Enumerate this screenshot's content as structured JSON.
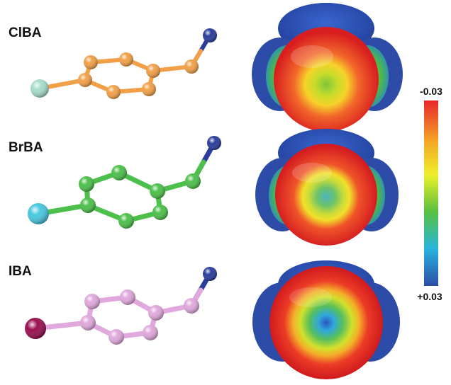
{
  "molecules": [
    {
      "label": "ClBA",
      "carbon_color": "#f2a048",
      "halogen_color": "#a8dccc",
      "oxygen_color": "#f2a048"
    },
    {
      "label": "BrBA",
      "carbon_color": "#4cc04a",
      "halogen_color": "#48c8e0",
      "oxygen_color": "#4cc04a"
    },
    {
      "label": "IBA",
      "carbon_color": "#e0a8dc",
      "halogen_color": "#9a1050",
      "oxygen_color": "#e0a8dc"
    }
  ],
  "hydrogen_color": "#2a3c9c",
  "color_scale": {
    "top_label": "-0.03",
    "bottom_label": "+0.03",
    "stops": [
      "#e8262a",
      "#f4a626",
      "#eef02a",
      "#58c040",
      "#28b4dc",
      "#2c4ca8"
    ]
  }
}
